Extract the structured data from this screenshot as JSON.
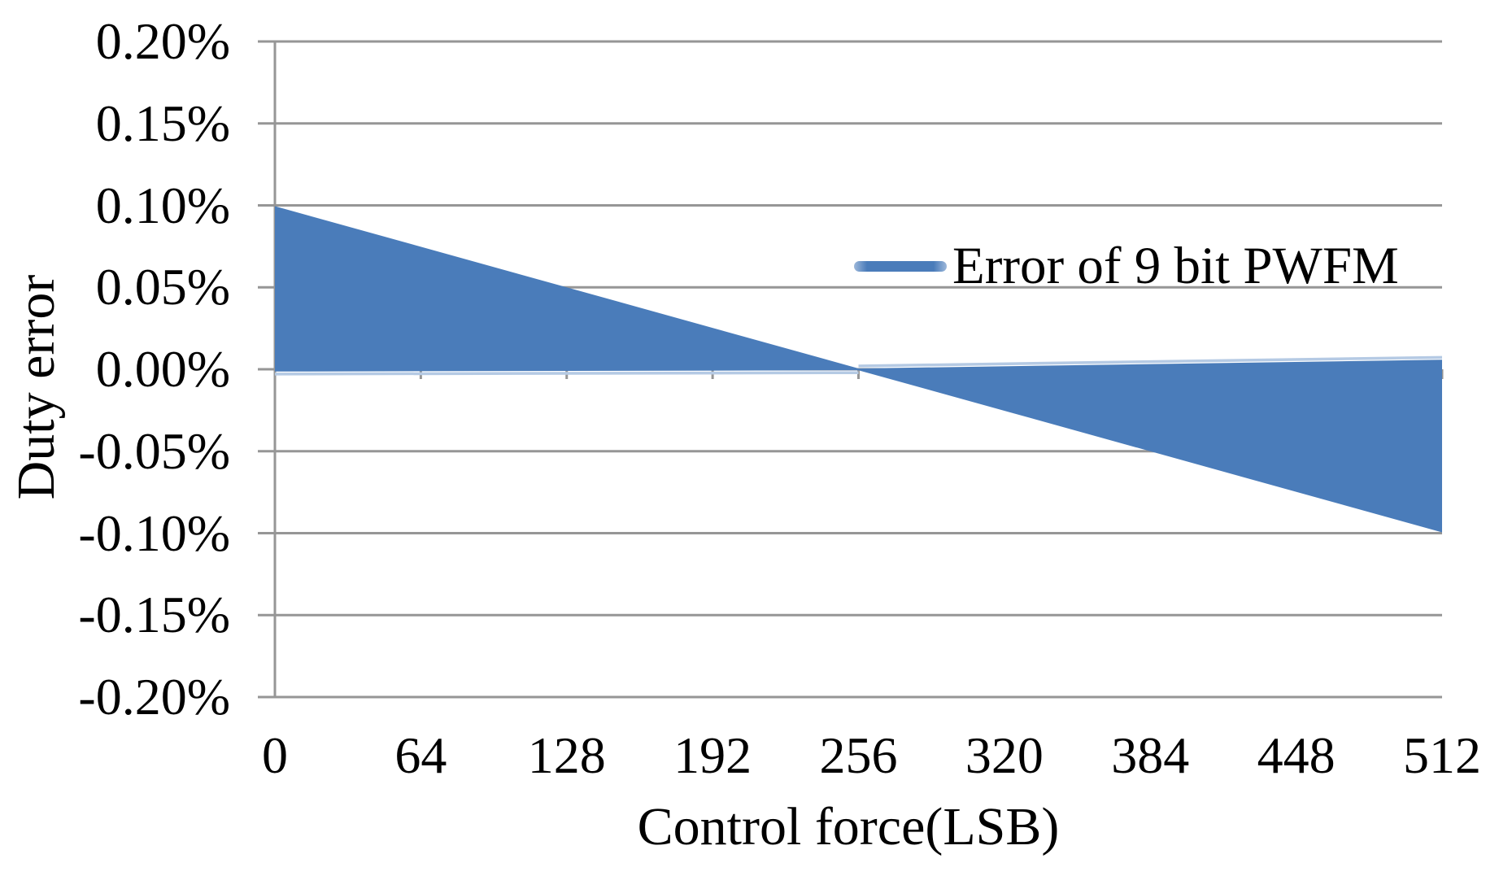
{
  "chart_data": {
    "type": "area",
    "title": "",
    "xlabel": "Control force(LSB)",
    "ylabel": "Duty error",
    "xlim": [
      0,
      512
    ],
    "ylim_pct": [
      -0.2,
      0.2
    ],
    "grid": true,
    "legend_position": "inside-right",
    "x_ticks": [
      0,
      64,
      128,
      192,
      256,
      320,
      384,
      448,
      512
    ],
    "y_ticks": [
      "0.20%",
      "0.15%",
      "0.10%",
      "0.05%",
      "0.00%",
      "-0.05%",
      "-0.10%",
      "-0.15%",
      "-0.20%"
    ],
    "y_tick_values_pct": [
      0.2,
      0.15,
      0.1,
      0.05,
      0.0,
      -0.05,
      -0.1,
      -0.15,
      -0.2
    ],
    "series": [
      {
        "name": "Error of 9 bit PWFM",
        "render": "oscillation-envelope-band",
        "description": "Dense oscillating duty-error signal whose envelope spans +0.10% to ~0% for control force 0-256 LSB, pinches to zero at 256 LSB, then spans ~0% to -0.10% for 256-512 LSB",
        "upper_envelope_pct": [
          [
            0,
            0.0995
          ],
          [
            256,
            0.0005
          ],
          [
            512,
            0.0058
          ]
        ],
        "lower_envelope_pct": [
          [
            0,
            -0.0014
          ],
          [
            256,
            -0.0006
          ],
          [
            512,
            -0.0995
          ]
        ]
      }
    ]
  },
  "legend": {
    "label": "Error of 9 bit PWFM"
  },
  "titles": {
    "x_axis": "Control force(LSB)",
    "y_axis": "Duty error"
  },
  "colors": {
    "band_fill": "#4a7cba",
    "band_fringe": "#b5cae4",
    "gridline": "#969696",
    "axis": "#969696",
    "text": "#000000",
    "background": "#ffffff"
  }
}
